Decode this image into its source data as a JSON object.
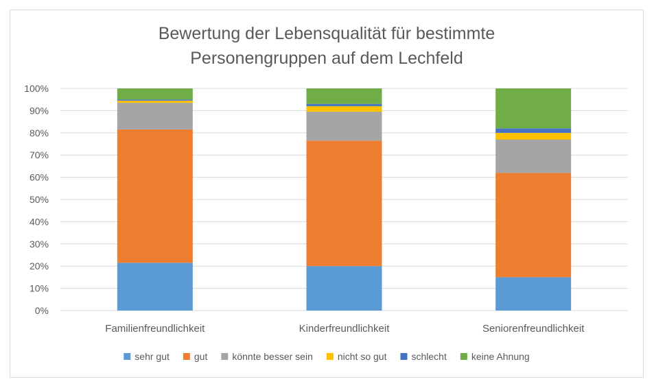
{
  "chart_data": {
    "type": "bar",
    "stacked": true,
    "title_lines": [
      "Bewertung der Lebensqualität für bestimmte",
      "Personengruppen auf dem Lechfeld"
    ],
    "categories": [
      "Familienfreundlichkeit",
      "Kinderfreundlichkeit",
      "Seniorenfreundlichkeit"
    ],
    "series": [
      {
        "name": "sehr gut",
        "color": "#5b9bd5",
        "values": [
          21.5,
          20.0,
          15.0
        ]
      },
      {
        "name": "gut",
        "color": "#ed7d31",
        "values": [
          60.0,
          56.5,
          47.0
        ]
      },
      {
        "name": "könnte besser sein",
        "color": "#a5a5a5",
        "values": [
          12.0,
          13.0,
          15.0
        ]
      },
      {
        "name": "nicht so gut",
        "color": "#ffc000",
        "values": [
          1.0,
          2.5,
          3.0
        ]
      },
      {
        "name": "schlecht",
        "color": "#4472c4",
        "values": [
          0.5,
          1.0,
          2.0
        ]
      },
      {
        "name": "keine Ahnung",
        "color": "#70ad47",
        "values": [
          5.0,
          7.0,
          18.0
        ]
      }
    ],
    "yticks": [
      "0%",
      "10%",
      "20%",
      "30%",
      "40%",
      "50%",
      "60%",
      "70%",
      "80%",
      "90%",
      "100%"
    ],
    "ylim": [
      0,
      100
    ],
    "grid": true,
    "legend": "bottom"
  }
}
